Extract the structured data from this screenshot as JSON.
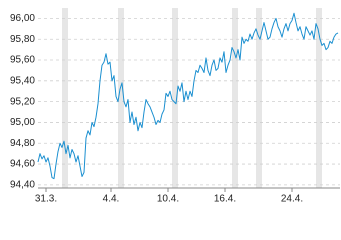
{
  "chart_data": {
    "type": "line",
    "color": "#1a8fd0",
    "grid": true,
    "shade_color": "#e6e6e6",
    "x": [
      0,
      1,
      2,
      3,
      4,
      5,
      6,
      7,
      8,
      9,
      10,
      11,
      12,
      13,
      14,
      15,
      16,
      17,
      18,
      19,
      20,
      21,
      22,
      23,
      24,
      25,
      26,
      27,
      28,
      29,
      30,
      31,
      32,
      33,
      34,
      35,
      36,
      37,
      38,
      39,
      40,
      41,
      42,
      43,
      44,
      45,
      46,
      47,
      48,
      49,
      50,
      51,
      52,
      53,
      54,
      55,
      56,
      57,
      58,
      59,
      60,
      61,
      62,
      63,
      64,
      65,
      66,
      67,
      68,
      69,
      70,
      71,
      72,
      73,
      74,
      75,
      76,
      77,
      78,
      79,
      80,
      81,
      82,
      83,
      84,
      85,
      86,
      87,
      88,
      89,
      90,
      91,
      92,
      93,
      94,
      95,
      96,
      97,
      98,
      99,
      100,
      101,
      102,
      103,
      104,
      105,
      106,
      107,
      108,
      109,
      110,
      111,
      112,
      113,
      114,
      115,
      116,
      117,
      118,
      119,
      120,
      121,
      122,
      123,
      124,
      125,
      126,
      127,
      128,
      129,
      130,
      131,
      132,
      133,
      134,
      135,
      136,
      137,
      138,
      139,
      140,
      141,
      142,
      143,
      144,
      145,
      146,
      147,
      148,
      149,
      150
    ],
    "values": [
      94.62,
      94.7,
      94.65,
      94.68,
      94.62,
      94.66,
      94.58,
      94.47,
      94.46,
      94.6,
      94.72,
      94.8,
      94.76,
      94.82,
      94.7,
      94.78,
      94.66,
      94.74,
      94.7,
      94.62,
      94.68,
      94.58,
      94.48,
      94.52,
      94.85,
      94.92,
      94.88,
      95.0,
      94.96,
      95.05,
      95.18,
      95.4,
      95.55,
      95.58,
      95.66,
      95.56,
      95.58,
      95.4,
      95.45,
      95.25,
      95.2,
      95.32,
      95.38,
      95.2,
      95.15,
      95.22,
      95.0,
      95.1,
      94.98,
      95.05,
      94.92,
      95.0,
      94.95,
      95.1,
      95.22,
      95.18,
      95.15,
      95.1,
      95.05,
      94.98,
      95.02,
      95.0,
      95.08,
      95.12,
      95.28,
      95.25,
      95.3,
      95.22,
      95.2,
      95.18,
      95.35,
      95.3,
      95.38,
      95.2,
      95.3,
      95.22,
      95.3,
      95.25,
      95.4,
      95.5,
      95.48,
      95.55,
      95.52,
      95.48,
      95.62,
      95.5,
      95.45,
      95.55,
      95.6,
      95.5,
      95.52,
      95.62,
      95.58,
      95.68,
      95.48,
      95.55,
      95.6,
      95.72,
      95.68,
      95.62,
      95.7,
      95.6,
      95.82,
      95.76,
      95.8,
      95.78,
      95.85,
      95.8,
      95.86,
      95.9,
      95.84,
      95.8,
      95.88,
      95.96,
      95.88,
      95.8,
      95.82,
      95.9,
      95.96,
      96.0,
      95.92,
      95.88,
      95.82,
      95.9,
      95.95,
      95.88,
      95.95,
      95.98,
      96.05,
      95.96,
      95.88,
      95.92,
      95.85,
      95.8,
      95.92,
      95.88,
      95.84,
      95.88,
      95.8,
      95.95,
      95.9,
      95.8,
      95.74,
      95.76,
      95.7,
      95.72,
      95.78,
      95.76,
      95.82,
      95.85,
      95.86
    ],
    "shaded_x": [
      [
        12,
        15
      ],
      [
        40,
        43
      ],
      [
        67,
        70
      ],
      [
        97,
        100
      ],
      [
        109,
        112
      ],
      [
        139,
        142
      ]
    ],
    "xlim": [
      0,
      151
    ],
    "xticks": [
      {
        "value": 4,
        "label": "31.3."
      },
      {
        "value": 36.5,
        "label": "4.4."
      },
      {
        "value": 65,
        "label": "10.4."
      },
      {
        "value": 93.5,
        "label": "16.4."
      },
      {
        "value": 127,
        "label": "24.4."
      }
    ],
    "ylim": [
      94.37,
      96.1
    ],
    "yticks": [
      {
        "value": 94.4,
        "label": "94,40"
      },
      {
        "value": 94.6,
        "label": "94,60"
      },
      {
        "value": 94.8,
        "label": "94,80"
      },
      {
        "value": 95.0,
        "label": "95,00"
      },
      {
        "value": 95.2,
        "label": "95,20"
      },
      {
        "value": 95.4,
        "label": "95,40"
      },
      {
        "value": 95.6,
        "label": "95,60"
      },
      {
        "value": 95.8,
        "label": "95,80"
      },
      {
        "value": 96.0,
        "label": "96,00"
      }
    ]
  }
}
